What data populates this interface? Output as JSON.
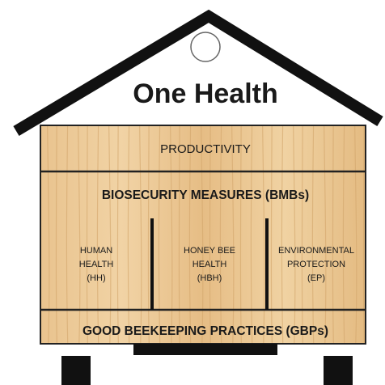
{
  "title": "One Health",
  "roof_band": "PRODUCTIVITY",
  "middle_header": "BIOSECURITY MEASURES (BMBs)",
  "pillars": [
    {
      "lines": [
        "HUMAN",
        "HEALTH",
        "(HH)"
      ]
    },
    {
      "lines": [
        "HONEY BEE",
        "HEALTH",
        "(HBH)"
      ]
    },
    {
      "lines": [
        "ENVIRONMENTAL",
        "PROTECTION",
        "(EP)"
      ]
    }
  ],
  "foundation": "GOOD BEEKEEPING PRACTICES (GBPs)"
}
